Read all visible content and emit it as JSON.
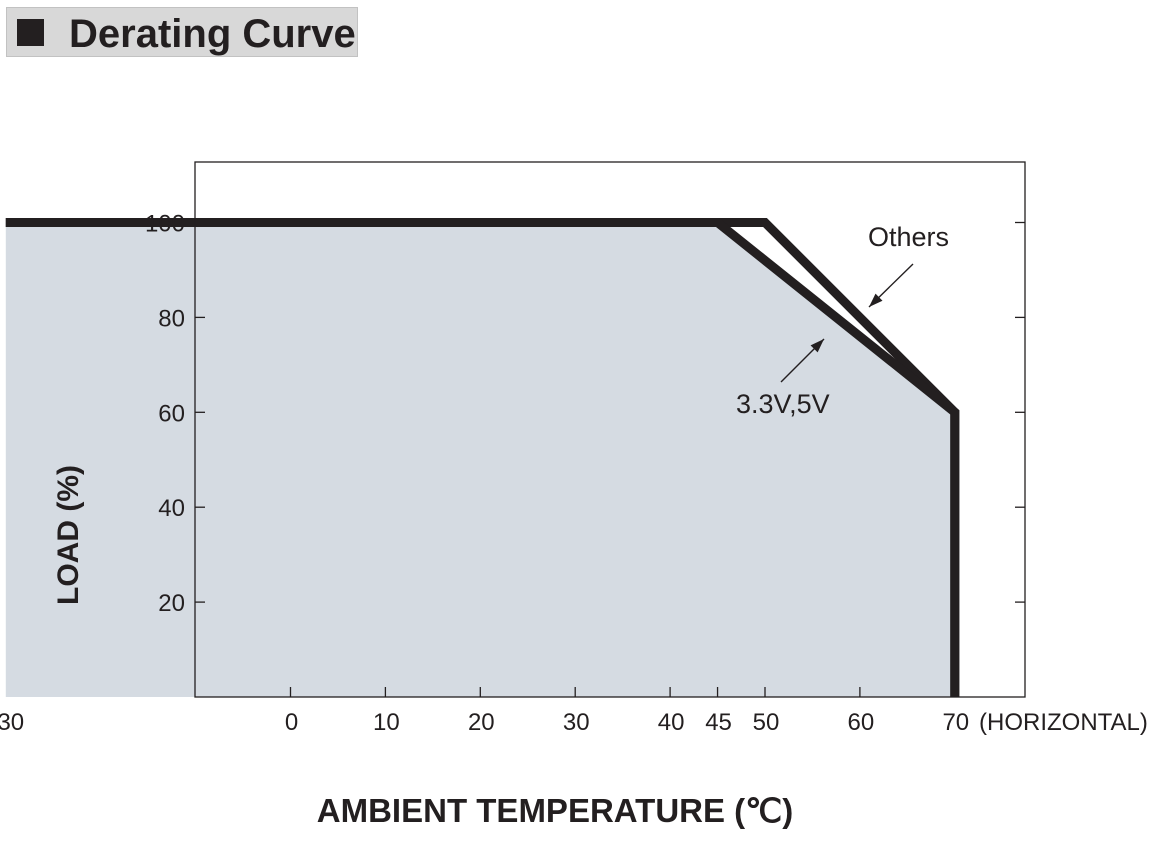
{
  "header": {
    "title": "Derating Curve"
  },
  "chart_data": {
    "type": "line",
    "title": "Derating Curve",
    "xlabel": "AMBIENT TEMPERATURE (℃)",
    "ylabel": "LOAD (%)",
    "x_suffix": "(HORIZONTAL)",
    "xlim": [
      -30,
      75
    ],
    "ylim": [
      0,
      112.5
    ],
    "xticks": [
      -30,
      0,
      10,
      20,
      30,
      40,
      45,
      50,
      60,
      70
    ],
    "yticks": [
      20,
      40,
      60,
      80,
      100
    ],
    "fill_color": "#d5dbe2",
    "line_color": "#231f20",
    "series": [
      {
        "name": "Others",
        "points": [
          [
            -30,
            100
          ],
          [
            50,
            100
          ],
          [
            70,
            60
          ],
          [
            70,
            0
          ]
        ]
      },
      {
        "name": "3.3V,5V",
        "points": [
          [
            -30,
            100
          ],
          [
            45,
            100
          ],
          [
            70,
            60
          ],
          [
            70,
            0
          ]
        ]
      }
    ],
    "annotations": [
      {
        "text": "Others",
        "series": "Others"
      },
      {
        "text": "3.3V,5V",
        "series": "3.3V,5V"
      }
    ]
  }
}
